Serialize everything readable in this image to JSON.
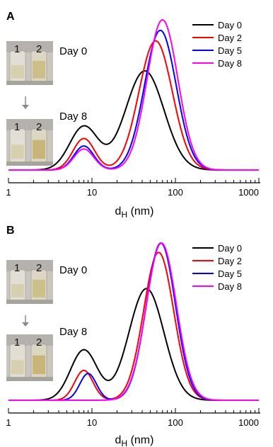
{
  "chart_data": [
    {
      "panel": "A",
      "type": "line",
      "xlabel": "d",
      "xlabel_subscript": "H",
      "xlabel_unit": "(nm)",
      "xscale": "log",
      "xlim": [
        1,
        1000
      ],
      "xticks": [
        "1",
        "10",
        "100",
        "1000"
      ],
      "ylim": [
        0,
        1
      ],
      "legend_position": "top-right",
      "photo_labels": [
        "Day 0",
        "Day 8"
      ],
      "vial_numbers": [
        "1",
        "2"
      ],
      "series": [
        {
          "name": "Day 0",
          "color": "#000000",
          "peaks": [
            {
              "center": 8.0,
              "height": 0.29,
              "width": 0.17
            },
            {
              "center": 43,
              "height": 0.66,
              "width": 0.23
            }
          ]
        },
        {
          "name": "Day 2",
          "color": "#ff0000",
          "peaks": [
            {
              "center": 8.0,
              "height": 0.21,
              "width": 0.13
            },
            {
              "center": 58,
              "height": 0.86,
              "width": 0.2
            }
          ]
        },
        {
          "name": "Day 5",
          "color": "#0000ff",
          "peaks": [
            {
              "center": 8.0,
              "height": 0.16,
              "width": 0.12
            },
            {
              "center": 66,
              "height": 0.93,
              "width": 0.19
            }
          ]
        },
        {
          "name": "Day 8",
          "color": "#ff00ff",
          "peaks": [
            {
              "center": 8.0,
              "height": 0.14,
              "width": 0.12
            },
            {
              "center": 70,
              "height": 1.0,
              "width": 0.185
            }
          ]
        }
      ]
    },
    {
      "panel": "B",
      "type": "line",
      "xlabel": "d",
      "xlabel_subscript": "H",
      "xlabel_unit": "(nm)",
      "xscale": "log",
      "xlim": [
        1,
        1000
      ],
      "xticks": [
        "1",
        "10",
        "100",
        "1000"
      ],
      "ylim": [
        0,
        1
      ],
      "legend_position": "top-right",
      "photo_labels": [
        "Day 0",
        "Day 8"
      ],
      "vial_numbers": [
        "1",
        "2"
      ],
      "series": [
        {
          "name": "Day 0",
          "color": "#000000",
          "peaks": [
            {
              "center": 8.0,
              "height": 0.32,
              "width": 0.16
            },
            {
              "center": 45,
              "height": 0.71,
              "width": 0.21
            }
          ]
        },
        {
          "name": "Day 2",
          "color": "#ff0000",
          "peaks": [
            {
              "center": 8.0,
              "height": 0.19,
              "width": 0.11
            },
            {
              "center": 63,
              "height": 0.94,
              "width": 0.18
            }
          ]
        },
        {
          "name": "Day 5",
          "color": "#0000ff",
          "peaks": [
            {
              "center": 9.0,
              "height": 0.17,
              "width": 0.1
            },
            {
              "center": 67,
              "height": 1.0,
              "width": 0.175
            }
          ]
        },
        {
          "name": "Day 8",
          "color": "#ff00ff",
          "peaks": [
            {
              "center": 68,
              "height": 1.0,
              "width": 0.18
            }
          ]
        }
      ]
    }
  ]
}
